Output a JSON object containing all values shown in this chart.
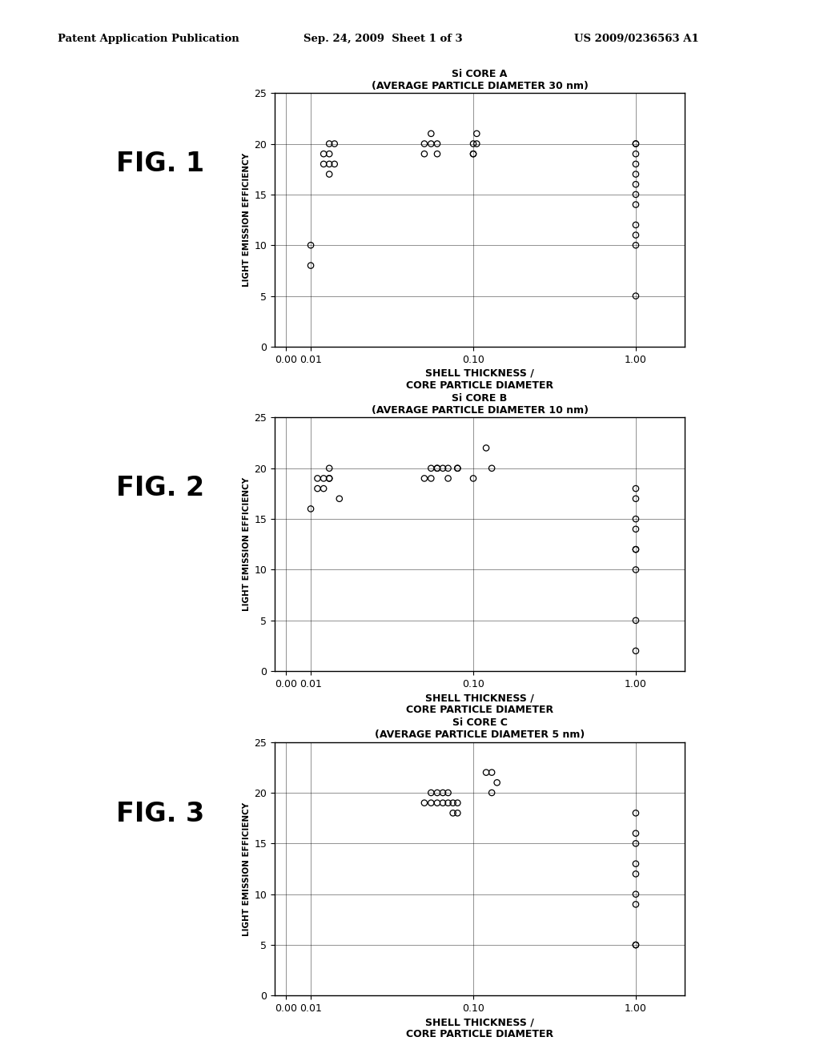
{
  "header_left": "Patent Application Publication",
  "header_mid": "Sep. 24, 2009  Sheet 1 of 3",
  "header_right": "US 2009/0236563 A1",
  "background_color": "#ffffff",
  "figures": [
    {
      "fig_label": "FIG. 1",
      "title_line1": "Si CORE A",
      "title_line2": "(AVERAGE PARTICLE DIAMETER 30 nm)",
      "xlabel_line1": "SHELL THICKNESS /",
      "xlabel_line2": "CORE PARTICLE DIAMETER",
      "ylabel": "LIGHT EMISSION EFFICIENCY",
      "data_x": [
        0.01,
        0.01,
        0.012,
        0.012,
        0.013,
        0.013,
        0.013,
        0.013,
        0.014,
        0.014,
        0.05,
        0.05,
        0.055,
        0.055,
        0.06,
        0.06,
        0.1,
        0.1,
        0.1,
        0.105,
        0.105,
        1.0,
        1.0,
        1.0,
        1.0,
        1.0,
        1.0,
        1.0,
        1.0,
        1.0,
        1.0,
        1.0,
        1.0
      ],
      "data_y": [
        10,
        8,
        19,
        18,
        20,
        19,
        18,
        17,
        20,
        18,
        20,
        19,
        21,
        20,
        20,
        19,
        20,
        19,
        19,
        21,
        20,
        20,
        20,
        19,
        18,
        17,
        16,
        15,
        14,
        12,
        11,
        10,
        5
      ]
    },
    {
      "fig_label": "FIG. 2",
      "title_line1": "Si CORE B",
      "title_line2": "(AVERAGE PARTICLE DIAMETER 10 nm)",
      "xlabel_line1": "SHELL THICKNESS /",
      "xlabel_line2": "CORE PARTICLE DIAMETER",
      "ylabel": "LIGHT EMISSION EFFICIENCY",
      "data_x": [
        0.01,
        0.011,
        0.011,
        0.012,
        0.012,
        0.013,
        0.013,
        0.013,
        0.015,
        0.05,
        0.055,
        0.055,
        0.06,
        0.06,
        0.065,
        0.07,
        0.07,
        0.08,
        0.08,
        0.1,
        0.12,
        0.13,
        1.0,
        1.0,
        1.0,
        1.0,
        1.0,
        1.0,
        1.0,
        1.0,
        1.0
      ],
      "data_y": [
        16,
        19,
        18,
        19,
        18,
        20,
        19,
        19,
        17,
        19,
        20,
        19,
        20,
        20,
        20,
        20,
        19,
        20,
        20,
        19,
        22,
        20,
        18,
        17,
        15,
        14,
        12,
        12,
        10,
        5,
        2
      ]
    },
    {
      "fig_label": "FIG. 3",
      "title_line1": "Si CORE C",
      "title_line2": "(AVERAGE PARTICLE DIAMETER 5 nm)",
      "xlabel_line1": "SHELL THICKNESS /",
      "xlabel_line2": "CORE PARTICLE DIAMETER",
      "ylabel": "LIGHT EMISSION EFFICIENCY",
      "data_x": [
        0.05,
        0.055,
        0.055,
        0.06,
        0.06,
        0.065,
        0.065,
        0.07,
        0.07,
        0.075,
        0.075,
        0.08,
        0.08,
        0.12,
        0.13,
        0.13,
        0.14,
        1.0,
        1.0,
        1.0,
        1.0,
        1.0,
        1.0,
        1.0,
        1.0,
        1.0
      ],
      "data_y": [
        19,
        20,
        19,
        20,
        19,
        20,
        19,
        20,
        19,
        19,
        18,
        19,
        18,
        22,
        22,
        20,
        21,
        18,
        16,
        15,
        13,
        12,
        10,
        9,
        5,
        5
      ]
    }
  ]
}
